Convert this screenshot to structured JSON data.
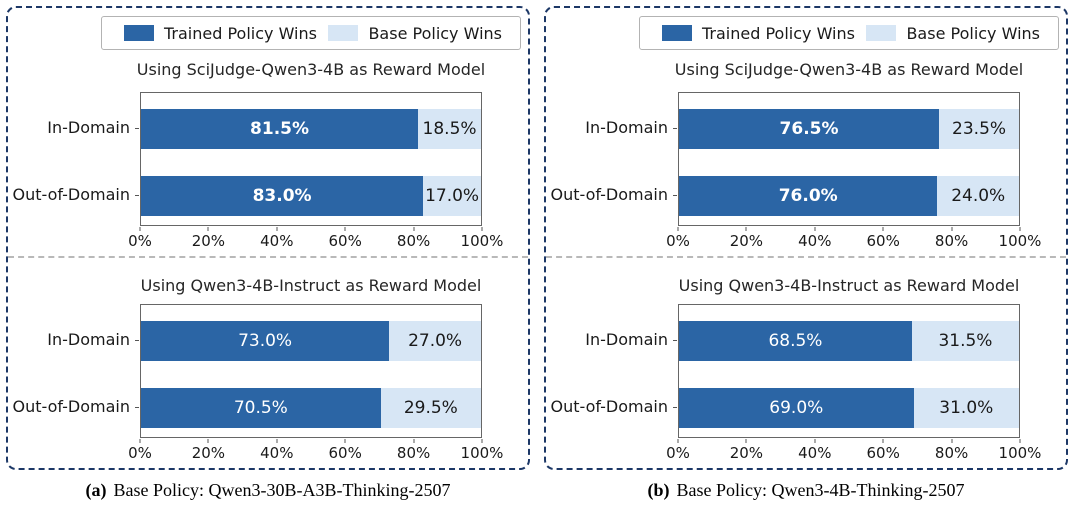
{
  "colors": {
    "trained_bar": "#2b65a5",
    "base_bar": "#d7e6f5",
    "panel_border": "#1c3766",
    "separator": "#b9b9b9",
    "axis_spine": "#666666",
    "trained_value_text": "#ffffff",
    "base_value_text": "#1a1a1a"
  },
  "legend": {
    "items": [
      {
        "label": "Trained Policy Wins",
        "swatch": "trained-dark-blue"
      },
      {
        "label": "Base Policy Wins",
        "swatch": "base-light-blue"
      }
    ]
  },
  "chart_data": [
    {
      "type": "bar",
      "orientation": "horizontal",
      "stacked": true,
      "panel_label": "(a)",
      "caption": "Base Policy: Qwen3-30B-A3B-Thinking-2507",
      "x_axis": {
        "range": [
          0,
          100
        ],
        "ticks": [
          "0%",
          "20%",
          "40%",
          "60%",
          "80%",
          "100%"
        ],
        "grid": false
      },
      "legend_position": "top-center",
      "charts": [
        {
          "title": "Using SciJudge-Qwen3-4B as Reward Model",
          "value_labels_bold": true,
          "categories": [
            "In-Domain",
            "Out-of-Domain"
          ],
          "series": [
            {
              "name": "Trained Policy Wins",
              "values": [
                81.5,
                83.0
              ]
            },
            {
              "name": "Base Policy Wins",
              "values": [
                18.5,
                17.0
              ]
            }
          ],
          "rows": [
            {
              "category": "In-Domain",
              "trained_pct": 81.5,
              "base_pct": 18.5,
              "trained_label": "81.5%",
              "base_label": "18.5%"
            },
            {
              "category": "Out-of-Domain",
              "trained_pct": 83.0,
              "base_pct": 17.0,
              "trained_label": "83.0%",
              "base_label": "17.0%"
            }
          ]
        },
        {
          "title": "Using Qwen3-4B-Instruct as Reward Model",
          "value_labels_bold": false,
          "categories": [
            "In-Domain",
            "Out-of-Domain"
          ],
          "series": [
            {
              "name": "Trained Policy Wins",
              "values": [
                73.0,
                70.5
              ]
            },
            {
              "name": "Base Policy Wins",
              "values": [
                27.0,
                29.5
              ]
            }
          ],
          "rows": [
            {
              "category": "In-Domain",
              "trained_pct": 73.0,
              "base_pct": 27.0,
              "trained_label": "73.0%",
              "base_label": "27.0%"
            },
            {
              "category": "Out-of-Domain",
              "trained_pct": 70.5,
              "base_pct": 29.5,
              "trained_label": "70.5%",
              "base_label": "29.5%"
            }
          ]
        }
      ]
    },
    {
      "type": "bar",
      "orientation": "horizontal",
      "stacked": true,
      "panel_label": "(b)",
      "caption": "Base Policy: Qwen3-4B-Thinking-2507",
      "x_axis": {
        "range": [
          0,
          100
        ],
        "ticks": [
          "0%",
          "20%",
          "40%",
          "60%",
          "80%",
          "100%"
        ],
        "grid": false
      },
      "legend_position": "top-center",
      "charts": [
        {
          "title": "Using SciJudge-Qwen3-4B as Reward Model",
          "value_labels_bold": true,
          "categories": [
            "In-Domain",
            "Out-of-Domain"
          ],
          "series": [
            {
              "name": "Trained Policy Wins",
              "values": [
                76.5,
                76.0
              ]
            },
            {
              "name": "Base Policy Wins",
              "values": [
                23.5,
                24.0
              ]
            }
          ],
          "rows": [
            {
              "category": "In-Domain",
              "trained_pct": 76.5,
              "base_pct": 23.5,
              "trained_label": "76.5%",
              "base_label": "23.5%"
            },
            {
              "category": "Out-of-Domain",
              "trained_pct": 76.0,
              "base_pct": 24.0,
              "trained_label": "76.0%",
              "base_label": "24.0%"
            }
          ]
        },
        {
          "title": "Using Qwen3-4B-Instruct as Reward Model",
          "value_labels_bold": false,
          "categories": [
            "In-Domain",
            "Out-of-Domain"
          ],
          "series": [
            {
              "name": "Trained Policy Wins",
              "values": [
                68.5,
                69.0
              ]
            },
            {
              "name": "Base Policy Wins",
              "values": [
                31.5,
                31.0
              ]
            }
          ],
          "rows": [
            {
              "category": "In-Domain",
              "trained_pct": 68.5,
              "base_pct": 31.5,
              "trained_label": "68.5%",
              "base_label": "31.5%"
            },
            {
              "category": "Out-of-Domain",
              "trained_pct": 69.0,
              "base_pct": 31.0,
              "trained_label": "69.0%",
              "base_label": "31.0%"
            }
          ]
        }
      ]
    }
  ]
}
